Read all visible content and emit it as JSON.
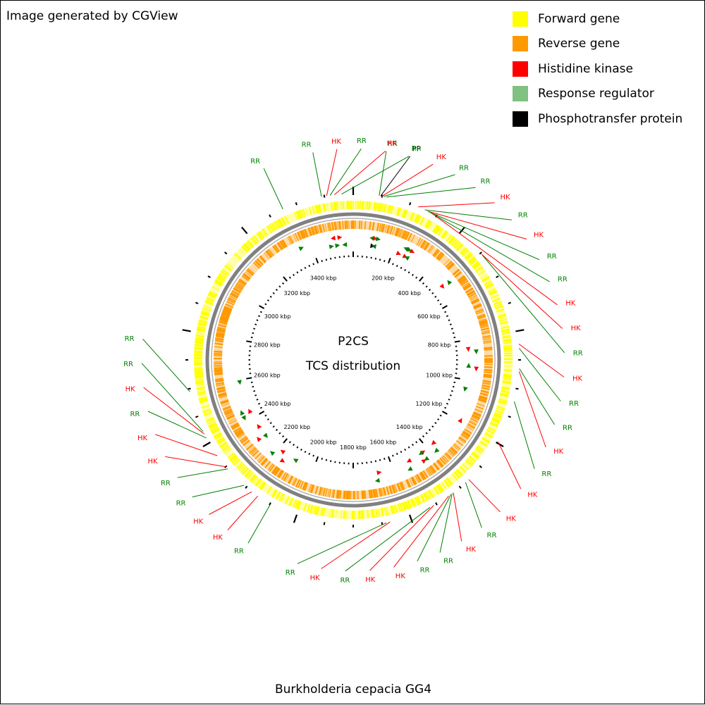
{
  "credit": "Image generated by CGView",
  "center": {
    "line1": "P2CS",
    "line2": "TCS distribution"
  },
  "organism": "Burkholderia cepacia GG4",
  "legend": [
    {
      "label": "Forward gene",
      "color": "#ffff00"
    },
    {
      "label": "Reverse gene",
      "color": "#ff9900"
    },
    {
      "label": "Histidine kinase",
      "color": "#ff0000"
    },
    {
      "label": "Response regulator",
      "color": "#80c080"
    },
    {
      "label": "Phosphotransfer protein",
      "color": "#000000"
    }
  ],
  "map": {
    "genome_kbp": 3600,
    "tick_labels": [
      "200 kbp",
      "400 kbp",
      "600 kbp",
      "800 kbp",
      "1000 kbp",
      "1200 kbp",
      "1400 kbp",
      "1600 kbp",
      "1800 kbp",
      "2000 kbp",
      "2200 kbp",
      "2400 kbp",
      "2600 kbp",
      "2800 kbp",
      "3000 kbp",
      "3200 kbp",
      "3400 kbp"
    ],
    "colors": {
      "hk": "#ff0000",
      "rr": "#008000",
      "pp": "#000000",
      "forward": "#ffff00",
      "reverse": "#ff9900",
      "backbone": "#808080"
    },
    "features": [
      {
        "type": "RR",
        "kbp": 3350
      },
      {
        "type": "RR",
        "kbp": 3490
      },
      {
        "type": "HK",
        "kbp": 3508
      },
      {
        "type": "RR",
        "kbp": 3520
      },
      {
        "type": "HK",
        "kbp": 3535
      },
      {
        "type": "RR",
        "kbp": 3560
      },
      {
        "type": "RR",
        "kbp": 90
      },
      {
        "type": "PP",
        "kbp": 95
      },
      {
        "type": "HK",
        "kbp": 100
      },
      {
        "type": "RR",
        "kbp": 105
      },
      {
        "type": "RR",
        "kbp": 115
      },
      {
        "type": "HK",
        "kbp": 230
      },
      {
        "type": "RR",
        "kbp": 255
      },
      {
        "type": "HK",
        "kbp": 265
      },
      {
        "type": "RR",
        "kbp": 270
      },
      {
        "type": "RR",
        "kbp": 278
      },
      {
        "type": "HK",
        "kbp": 285
      },
      {
        "type": "HK",
        "kbp": 505
      },
      {
        "type": "RR",
        "kbp": 510
      },
      {
        "type": "HK",
        "kbp": 845
      },
      {
        "type": "RR",
        "kbp": 860
      },
      {
        "type": "RR",
        "kbp": 930
      },
      {
        "type": "HK",
        "kbp": 940
      },
      {
        "type": "RR",
        "kbp": 1045
      },
      {
        "type": "HK",
        "kbp": 1195
      },
      {
        "type": "HK",
        "kbp": 1360
      },
      {
        "type": "RR",
        "kbp": 1375
      },
      {
        "type": "HK",
        "kbp": 1430
      },
      {
        "type": "RR",
        "kbp": 1435
      },
      {
        "type": "RR",
        "kbp": 1440
      },
      {
        "type": "HK",
        "kbp": 1450
      },
      {
        "type": "HK",
        "kbp": 1510
      },
      {
        "type": "RR",
        "kbp": 1525
      },
      {
        "type": "HK",
        "kbp": 1672
      },
      {
        "type": "RR",
        "kbp": 1685
      },
      {
        "type": "RR",
        "kbp": 2098
      },
      {
        "type": "HK",
        "kbp": 2150
      },
      {
        "type": "HK",
        "kbp": 2175
      },
      {
        "type": "RR",
        "kbp": 2210
      },
      {
        "type": "RR",
        "kbp": 2290
      },
      {
        "type": "HK",
        "kbp": 2300
      },
      {
        "type": "HK",
        "kbp": 2348
      },
      {
        "type": "RR",
        "kbp": 2420
      },
      {
        "type": "HK",
        "kbp": 2435
      },
      {
        "type": "RR",
        "kbp": 2445
      },
      {
        "type": "RR",
        "kbp": 2590
      }
    ]
  }
}
